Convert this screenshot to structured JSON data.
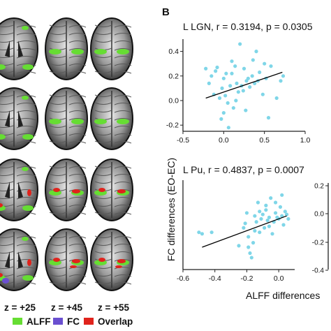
{
  "panel_b_label": "B",
  "ylabel_shared": "FC differences (EO-EC)",
  "xlabel_shared": "ALFF differences",
  "brain_panel": {
    "z_labels": [
      "z = +25",
      "z = +45",
      "z = +55"
    ],
    "legend": [
      {
        "label": "ALFF",
        "color": "#66dd33"
      },
      {
        "label": "FC",
        "color": "#6a4fd0"
      },
      {
        "label": "Overlap",
        "color": "#e0231c"
      }
    ]
  },
  "colors": {
    "point": "#7fd6e8",
    "fit_line": "#000000"
  },
  "chart_data": [
    {
      "type": "scatter",
      "title": "L LGN, r = 0.3194, p = 0.0305",
      "xlim": [
        -0.5,
        1.0
      ],
      "ylim": [
        -0.25,
        0.5
      ],
      "x_ticks": [
        "-0.5",
        "0.0",
        "0.5",
        "1.0"
      ],
      "y_ticks": [
        "-0.2",
        "0.0",
        "0.2",
        "0.4"
      ],
      "x_tick_values": [
        -0.5,
        0.0,
        0.5,
        1.0
      ],
      "y_tick_values": [
        -0.2,
        0.0,
        0.2,
        0.4
      ],
      "fit": [
        [
          -0.22,
          0.02
        ],
        [
          0.72,
          0.23
        ]
      ],
      "points": [
        [
          -0.22,
          0.26
        ],
        [
          -0.18,
          0.14
        ],
        [
          -0.15,
          0.2
        ],
        [
          -0.12,
          0.05
        ],
        [
          -0.1,
          0.24
        ],
        [
          -0.08,
          0.27
        ],
        [
          -0.05,
          0.02
        ],
        [
          -0.02,
          0.1
        ],
        [
          0.0,
          0.18
        ],
        [
          0.0,
          -0.1
        ],
        [
          0.02,
          0.04
        ],
        [
          0.03,
          0.22
        ],
        [
          0.05,
          -0.02
        ],
        [
          0.08,
          0.12
        ],
        [
          0.1,
          0.22
        ],
        [
          0.12,
          -0.06
        ],
        [
          0.15,
          0.0
        ],
        [
          0.16,
          0.14
        ],
        [
          0.18,
          0.07
        ],
        [
          0.2,
          0.46
        ],
        [
          0.22,
          0.12
        ],
        [
          0.25,
          0.26
        ],
        [
          0.27,
          -0.08
        ],
        [
          0.28,
          0.16
        ],
        [
          0.3,
          0.18
        ],
        [
          0.32,
          0.11
        ],
        [
          0.35,
          0.2
        ],
        [
          0.36,
          0.33
        ],
        [
          0.38,
          0.14
        ],
        [
          0.4,
          0.4
        ],
        [
          0.42,
          0.16
        ],
        [
          0.44,
          0.23
        ],
        [
          0.48,
          0.05
        ],
        [
          0.5,
          0.3
        ],
        [
          0.52,
          0.18
        ],
        [
          0.55,
          -0.14
        ],
        [
          0.58,
          0.28
        ],
        [
          0.65,
          0.02
        ],
        [
          0.7,
          0.16
        ],
        [
          0.73,
          0.2
        ],
        [
          -0.03,
          -0.15
        ],
        [
          0.06,
          -0.22
        ],
        [
          0.1,
          0.32
        ],
        [
          0.14,
          0.28
        ],
        [
          0.24,
          0.08
        ]
      ]
    },
    {
      "type": "scatter",
      "title": "L Pu, r = 0.4837, p = 0.0007",
      "xlim": [
        -0.6,
        0.1
      ],
      "ylim": [
        -0.3,
        0.3
      ],
      "x_ticks": [
        "-0.6",
        "-0.4",
        "-0.2",
        "0.0"
      ],
      "y_ticks": [],
      "x_tick_values": [
        -0.6,
        -0.4,
        -0.2,
        0.0
      ],
      "y_tick_values": [],
      "fit": [
        [
          -0.48,
          -0.15
        ],
        [
          0.05,
          0.06
        ]
      ],
      "points": [
        [
          -0.5,
          -0.05
        ],
        [
          -0.48,
          -0.06
        ],
        [
          -0.42,
          -0.05
        ],
        [
          -0.25,
          -0.14
        ],
        [
          -0.22,
          -0.02
        ],
        [
          -0.2,
          0.08
        ],
        [
          -0.19,
          -0.08
        ],
        [
          -0.18,
          -0.19
        ],
        [
          -0.16,
          -0.12
        ],
        [
          -0.15,
          -0.04
        ],
        [
          -0.14,
          0.02
        ],
        [
          -0.13,
          0.15
        ],
        [
          -0.12,
          -0.05
        ],
        [
          -0.11,
          0.04
        ],
        [
          -0.1,
          0.07
        ],
        [
          -0.09,
          -0.02
        ],
        [
          -0.08,
          0.1
        ],
        [
          -0.07,
          0.03
        ],
        [
          -0.06,
          0.05
        ],
        [
          -0.05,
          0.18
        ],
        [
          -0.04,
          -0.06
        ],
        [
          -0.03,
          0.02
        ],
        [
          -0.02,
          0.08
        ],
        [
          -0.01,
          0.05
        ],
        [
          0.0,
          0.04
        ],
        [
          0.01,
          0.12
        ],
        [
          0.02,
          0.06
        ],
        [
          0.03,
          0.0
        ],
        [
          0.04,
          0.09
        ],
        [
          0.05,
          0.07
        ],
        [
          -0.21,
          0.01
        ],
        [
          -0.17,
          -0.22
        ],
        [
          -0.06,
          -0.01
        ],
        [
          -0.02,
          0.15
        ],
        [
          0.02,
          0.2
        ],
        [
          -0.12,
          0.09
        ],
        [
          -0.08,
          0.13
        ],
        [
          -0.15,
          0.06
        ],
        [
          -0.19,
          -0.15
        ],
        [
          0.06,
          0.04
        ]
      ]
    },
    {
      "type": "scatter",
      "title": "",
      "ylim": [
        -0.25,
        0.25
      ],
      "y_ticks": [
        "0.2",
        "0.0",
        "-0.2",
        "-0.4"
      ],
      "note": "partially visible third plot axis"
    }
  ]
}
